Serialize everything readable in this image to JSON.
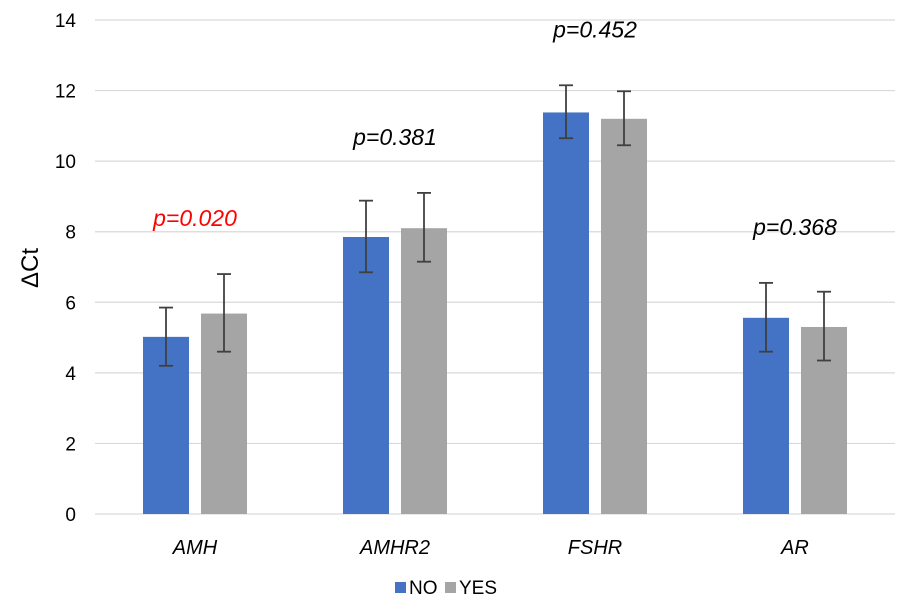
{
  "chart_data": {
    "type": "bar",
    "ylabel": "ΔCt",
    "ylim": [
      0,
      14
    ],
    "yticks": [
      0,
      2,
      4,
      6,
      8,
      10,
      12,
      14
    ],
    "grid": true,
    "legend_position": "bottom-center",
    "categories": [
      "AMH",
      "AMHR2",
      "FSHR",
      "AR"
    ],
    "series": [
      {
        "name": "NO",
        "color": "#4472C4",
        "values": [
          5.02,
          7.85,
          11.38,
          5.56
        ],
        "error_low": [
          4.2,
          6.85,
          10.65,
          4.6
        ],
        "error_high": [
          5.85,
          8.88,
          12.15,
          6.55
        ]
      },
      {
        "name": "YES",
        "color": "#A5A5A5",
        "values": [
          5.68,
          8.1,
          11.2,
          5.3
        ],
        "error_low": [
          4.6,
          7.15,
          10.45,
          4.35
        ],
        "error_high": [
          6.8,
          9.1,
          11.98,
          6.3
        ]
      }
    ],
    "annotations": [
      {
        "category": "AMH",
        "text": "p=0.020",
        "color": "#FF0000"
      },
      {
        "category": "AMHR2",
        "text": "p=0.381",
        "color": "#000000"
      },
      {
        "category": "FSHR",
        "text": "p=0.452",
        "color": "#000000"
      },
      {
        "category": "AR",
        "text": "p=0.368",
        "color": "#000000"
      }
    ]
  }
}
